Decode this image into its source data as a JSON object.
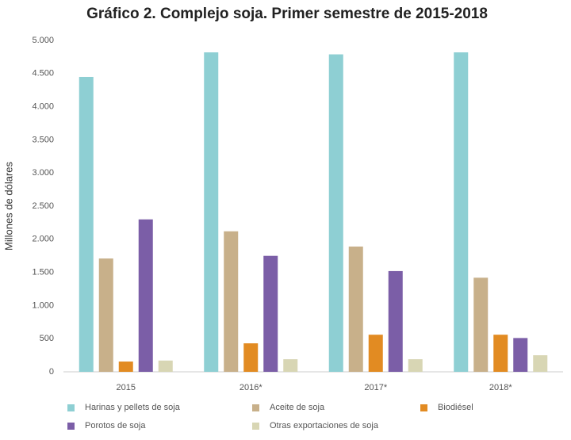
{
  "chart_data": {
    "type": "bar",
    "title": "Gráfico 2. Complejo soja. Primer semestre de 2015-2018",
    "ylabel": "Millones de dólares",
    "categories": [
      "2015",
      "2016*",
      "2017*",
      "2018*"
    ],
    "series": [
      {
        "name": "Harinas y pellets de soja",
        "color": "#8ecfd3",
        "values": [
          4450,
          4820,
          4790,
          4820
        ]
      },
      {
        "name": "Aceite de soja",
        "color": "#c8b08a",
        "values": [
          1710,
          2120,
          1890,
          1420
        ]
      },
      {
        "name": "Biodiésel",
        "color": "#e28b22",
        "values": [
          155,
          430,
          560,
          560
        ]
      },
      {
        "name": "Porotos de soja",
        "color": "#7b5ea7",
        "values": [
          2300,
          1750,
          1520,
          510
        ]
      },
      {
        "name": "Otras exportaciones de soja",
        "color": "#d8d6b4",
        "values": [
          170,
          190,
          190,
          250
        ]
      }
    ],
    "ylim": [
      0,
      5000
    ],
    "yticks": [
      0,
      500,
      {
        "value": 1000,
        "label": "1.000"
      },
      {
        "value": 1500,
        "label": "1.500"
      },
      {
        "value": 2000,
        "label": "2.000"
      },
      {
        "value": 2500,
        "label": "2.500"
      },
      {
        "value": 3000,
        "label": "3.000"
      },
      {
        "value": 3500,
        "label": "3.500"
      },
      {
        "value": 4000,
        "label": "4.000"
      },
      {
        "value": 4500,
        "label": "4.500"
      },
      {
        "value": 5000,
        "label": "5.000"
      }
    ],
    "grid": false,
    "legend": "bottom"
  }
}
